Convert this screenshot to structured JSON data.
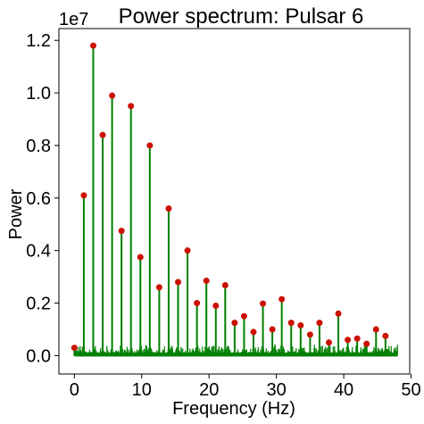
{
  "chart_data": {
    "type": "line",
    "title": "Power spectrum: Pulsar 6",
    "xlabel": "Frequency (Hz)",
    "ylabel": "Power",
    "y_offset_label": "1e7",
    "xlim": [
      -2.3,
      49.8
    ],
    "ylim": [
      -0.07,
      1.245
    ],
    "y_scale_exponent": 7,
    "x_ticks": [
      0,
      10,
      20,
      30,
      40,
      50
    ],
    "x_tick_labels": [
      "0",
      "10",
      "20",
      "30",
      "40",
      "50"
    ],
    "y_ticks": [
      0.0,
      0.2,
      0.4,
      0.6,
      0.8,
      1.0,
      1.2
    ],
    "y_tick_labels": [
      "0.0",
      "0.2",
      "0.4",
      "0.6",
      "0.8",
      "1.0",
      "1.2"
    ],
    "grid": false,
    "line_color": "#008000",
    "marker_color": "#cc1100",
    "noise_level": 0.045,
    "noise_x_range": [
      0.0,
      48.0
    ],
    "peaks": {
      "x": [
        0.0,
        1.4,
        2.8,
        4.2,
        5.6,
        7.0,
        8.4,
        9.8,
        11.2,
        12.6,
        14.0,
        15.4,
        16.8,
        18.2,
        19.6,
        21.0,
        22.4,
        23.8,
        25.2,
        26.6,
        28.0,
        29.4,
        30.8,
        32.2,
        33.6,
        35.0,
        36.4,
        37.8,
        39.2,
        40.6,
        42.0,
        43.4,
        44.8,
        46.2
      ],
      "y": [
        0.03,
        0.61,
        1.18,
        0.84,
        0.99,
        0.475,
        0.95,
        0.375,
        0.8,
        0.26,
        0.56,
        0.28,
        0.4,
        0.2,
        0.285,
        0.19,
        0.268,
        0.125,
        0.15,
        0.09,
        0.198,
        0.1,
        0.215,
        0.125,
        0.115,
        0.08,
        0.125,
        0.05,
        0.16,
        0.06,
        0.065,
        0.045,
        0.1,
        0.075
      ]
    }
  }
}
